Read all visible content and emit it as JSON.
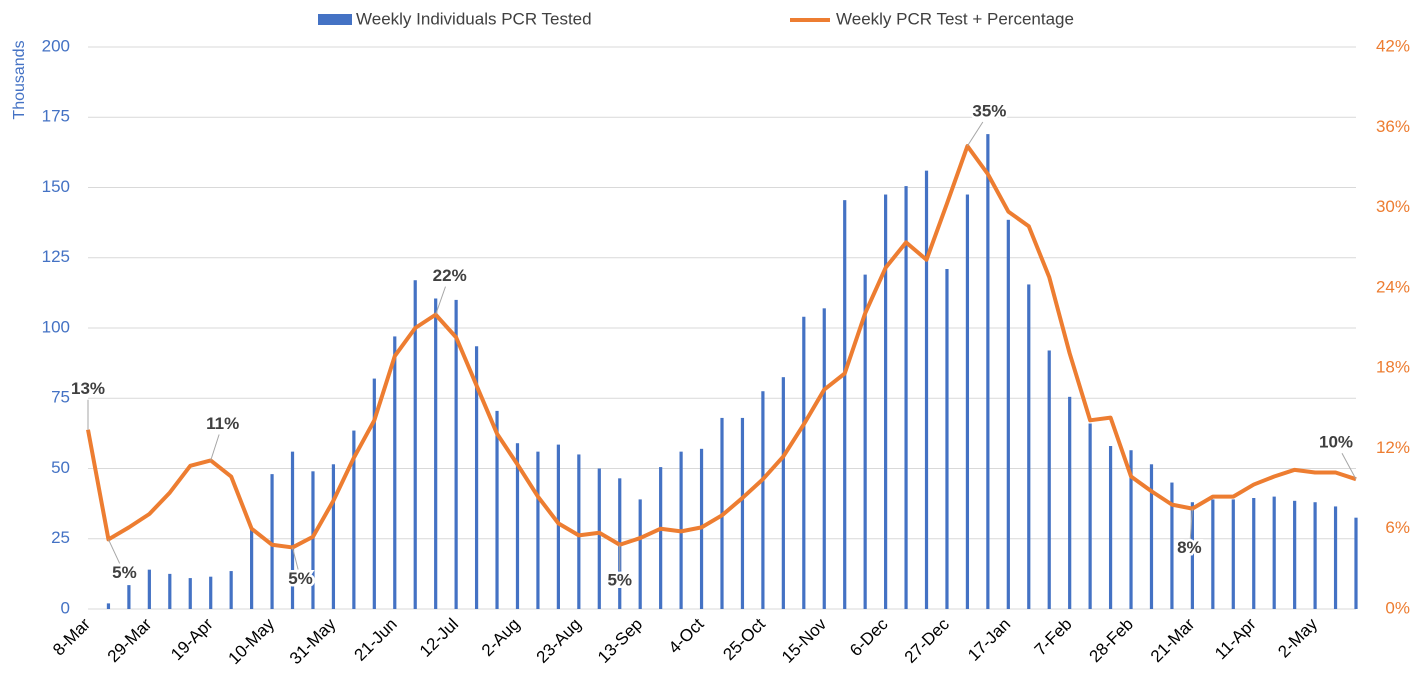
{
  "chart_data": {
    "type": "bar",
    "y_axis_label": "Thousands",
    "categories": [
      "8-Mar",
      null,
      null,
      "29-Mar",
      null,
      null,
      "19-Apr",
      null,
      null,
      "10-May",
      null,
      null,
      "31-May",
      null,
      null,
      "21-Jun",
      null,
      null,
      "12-Jul",
      null,
      null,
      "2-Aug",
      null,
      null,
      "23-Aug",
      null,
      null,
      "13-Sep",
      null,
      null,
      "4-Oct",
      null,
      null,
      "25-Oct",
      null,
      null,
      "15-Nov",
      null,
      null,
      "6-Dec",
      null,
      null,
      "27-Dec",
      null,
      null,
      "17-Jan",
      null,
      null,
      "7-Feb",
      null,
      null,
      "28-Feb",
      null,
      null,
      "21-Mar",
      null,
      null,
      "11-Apr",
      null,
      null,
      "2-May",
      null,
      null
    ],
    "series": [
      {
        "name": "Weekly Individuals PCR Tested",
        "type": "bar",
        "color": "#4472c4",
        "axis": "y",
        "values": [
          0,
          2,
          8.5,
          14,
          12.5,
          11,
          11.5,
          13.5,
          29,
          48,
          56,
          49,
          51.5,
          63.5,
          82,
          97,
          117,
          110.5,
          110,
          93.5,
          70.5,
          59,
          56,
          58.5,
          55,
          50,
          46.5,
          39,
          50.5,
          56,
          57,
          68,
          68,
          77.5,
          82.5,
          104,
          107,
          145.5,
          119,
          147.5,
          150.5,
          156,
          121,
          147.5,
          169,
          138.5,
          115.5,
          92,
          75.5,
          66,
          58,
          56.5,
          51.5,
          45,
          38,
          39,
          39,
          39.5,
          40,
          38.5,
          38,
          36.5,
          32.5
        ]
      },
      {
        "name": "Weekly PCR Test + Percentage",
        "type": "line",
        "color": "#ed7d31",
        "axis": "y2",
        "values": [
          13.4,
          5.2,
          6.1,
          7.1,
          8.7,
          10.7,
          11.1,
          9.9,
          6.0,
          4.8,
          4.6,
          5.4,
          8.1,
          11.3,
          14.1,
          18.9,
          21.0,
          22.0,
          20.3,
          16.7,
          13.1,
          10.8,
          8.4,
          6.4,
          5.5,
          5.7,
          4.8,
          5.3,
          6.0,
          5.8,
          6.1,
          7.0,
          8.3,
          9.7,
          11.4,
          13.8,
          16.4,
          17.6,
          22.1,
          25.5,
          27.4,
          26.1,
          30.3,
          34.6,
          32.5,
          29.7,
          28.6,
          24.8,
          19.1,
          14.1,
          14.3,
          9.9,
          8.8,
          7.8,
          7.5,
          8.4,
          8.4,
          9.3,
          9.9,
          10.4,
          10.2,
          10.2,
          9.7
        ],
        "value_labels": [
          "13%",
          "5%",
          null,
          null,
          null,
          null,
          "11%",
          null,
          null,
          null,
          "5%",
          null,
          null,
          null,
          null,
          null,
          null,
          "22%",
          null,
          null,
          null,
          null,
          null,
          null,
          null,
          null,
          "5%",
          null,
          null,
          null,
          null,
          null,
          null,
          null,
          null,
          null,
          null,
          null,
          null,
          null,
          null,
          null,
          null,
          "35%",
          null,
          null,
          null,
          null,
          null,
          null,
          null,
          null,
          null,
          null,
          "8%",
          null,
          null,
          null,
          null,
          null,
          null,
          null,
          "10%"
        ]
      }
    ],
    "ylim": [
      0,
      200
    ],
    "yticks": [
      0,
      25,
      50,
      75,
      100,
      125,
      150,
      175,
      200
    ],
    "y2lim": [
      0,
      42
    ],
    "y2ticks": [
      {
        "value": 0,
        "label": "0%"
      },
      {
        "value": 6,
        "label": "6%"
      },
      {
        "value": 12,
        "label": "12%"
      },
      {
        "value": 18,
        "label": "18%"
      },
      {
        "value": 24,
        "label": "24%"
      },
      {
        "value": 30,
        "label": "30%"
      },
      {
        "value": 36,
        "label": "36%"
      },
      {
        "value": 42,
        "label": "42%"
      }
    ],
    "grid": true,
    "legend": "top"
  }
}
